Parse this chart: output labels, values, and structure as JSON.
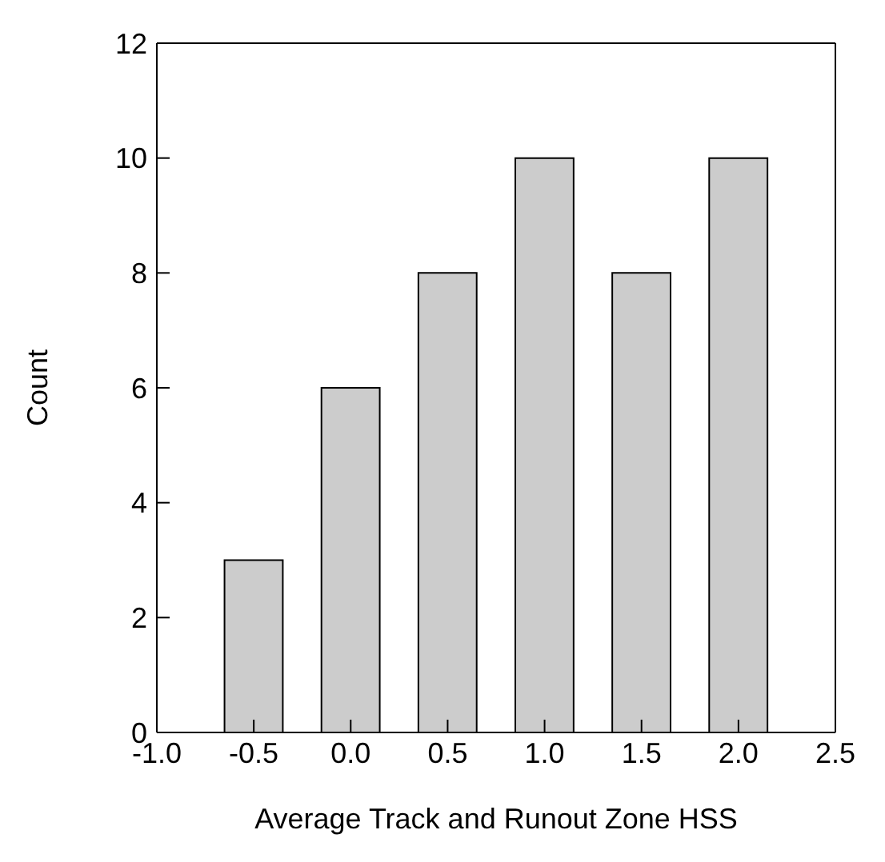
{
  "chart_data": {
    "type": "bar",
    "xlabel": "Average Track and Runout Zone HSS",
    "ylabel": "Count",
    "x": [
      -0.5,
      0.0,
      0.5,
      1.0,
      1.5,
      2.0
    ],
    "values": [
      3,
      6,
      8,
      10,
      8,
      10
    ],
    "color": "#cccccc",
    "xlim": [
      -1.0,
      2.5
    ],
    "xticks": [
      {
        "value": -1.0,
        "label": "-1.0"
      },
      {
        "value": -0.5,
        "label": "-0.5"
      },
      {
        "value": 0,
        "label": "0.0"
      },
      {
        "value": 0.5,
        "label": "0.5"
      },
      {
        "value": 1,
        "label": "1.0"
      },
      {
        "value": 1.5,
        "label": "1.5"
      },
      {
        "value": 2,
        "label": "2.0"
      },
      {
        "value": 2.5,
        "label": "2.5"
      }
    ],
    "ylim": [
      0,
      12
    ],
    "yticks": [
      0,
      2,
      4,
      6,
      8,
      10,
      12
    ],
    "grid": false,
    "legend": false
  }
}
